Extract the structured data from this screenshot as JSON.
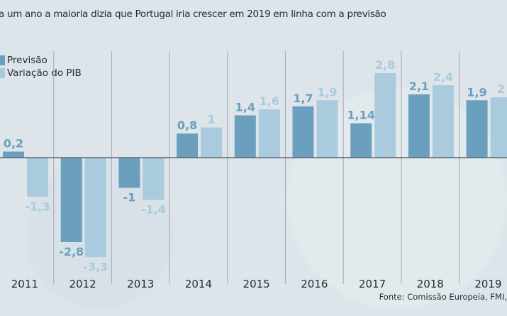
{
  "title": "a um ano a maioria dizia que Portugal iria crescer em 2019 em linha com a previsão",
  "source": "Fonte: Comissão Europeia, FMI,",
  "chart_data": {
    "type": "bar",
    "title": "a um ano a maioria dizia que Portugal iria crescer em 2019 em linha com a previsão",
    "categories": [
      "2011",
      "2012",
      "2013",
      "2014",
      "2015",
      "2016",
      "2017",
      "2018",
      "2019"
    ],
    "series": [
      {
        "name": "Previsão",
        "color": "#6aa0bd",
        "values": [
          0.2,
          -2.8,
          -1,
          0.8,
          1.4,
          1.7,
          1.14,
          2.1,
          1.9
        ],
        "labels": [
          "0,2",
          "-2,8",
          "-1",
          "0,8",
          "1,4",
          "1,7",
          "1,14",
          "2,1",
          "1,9"
        ]
      },
      {
        "name": "Variação do PIB",
        "color": "#a9cbdd",
        "values": [
          -1.3,
          -3.3,
          -1.4,
          1,
          1.6,
          1.9,
          2.8,
          2.4,
          2
        ],
        "labels": [
          "-1,3",
          "-3,3",
          "-1,4",
          "1",
          "1,6",
          "1,9",
          "2,8",
          "2,4",
          "2"
        ]
      }
    ],
    "legend": "top-left",
    "grid": false,
    "ylim": [
      -3.3,
      2.8
    ]
  }
}
